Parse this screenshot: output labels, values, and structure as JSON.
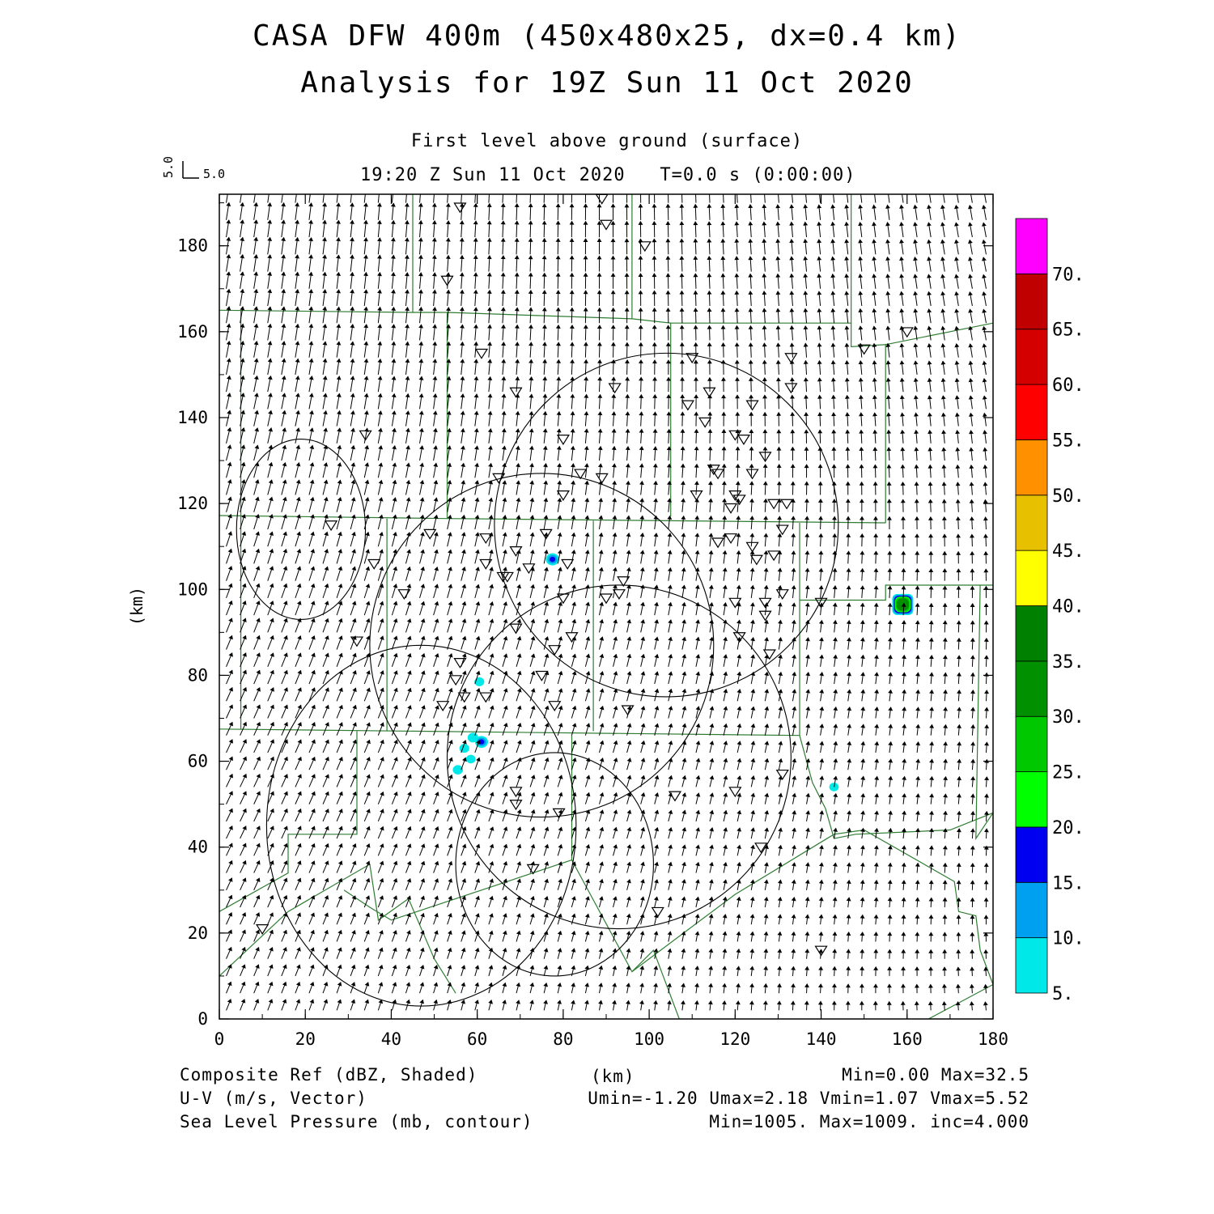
{
  "title_line1": "CASA DFW 400m (450x480x25, dx=0.4 km)",
  "title_line2": "Analysis for 19Z Sun 11 Oct 2020",
  "subtitle": "First level above ground (surface)",
  "time_line": "19:20 Z Sun 11 Oct 2020   T=0.0 s (0:00:00)",
  "vector_key": {
    "x_label": "5.0",
    "y_label": "5.0"
  },
  "footer": {
    "row1_left": "Composite Ref (dBZ, Shaded)",
    "row1_mid": "(km)",
    "row1_right": "Min=0.00 Max=32.5",
    "row2_left": "U-V (m/s, Vector)",
    "row2_right": "Umin=-1.20 Umax=2.18 Vmin=1.07 Vmax=5.52",
    "row3_left": "Sea Level Pressure (mb, contour)",
    "row3_right": "Min=1005. Max=1009. inc=4.000"
  },
  "chart_data": {
    "type": "heatmap",
    "xlabel": "",
    "ylabel": "(km)",
    "xlim": [
      0,
      180
    ],
    "ylim": [
      0,
      192
    ],
    "x_ticks": [
      "0",
      "20",
      "40",
      "60",
      "80",
      "100",
      "120",
      "140",
      "160",
      "180"
    ],
    "y_ticks": [
      "0",
      "20",
      "40",
      "60",
      "80",
      "100",
      "120",
      "140",
      "160",
      "180"
    ],
    "colorbar": {
      "levels": [
        "5.",
        "10.",
        "15.",
        "20.",
        "25.",
        "30.",
        "35.",
        "40.",
        "45.",
        "50.",
        "55.",
        "60.",
        "65.",
        "70."
      ],
      "colors": [
        "#00e8e8",
        "#00a0f0",
        "#0000f0",
        "#00ff00",
        "#00c800",
        "#009000",
        "#008000",
        "#ffff00",
        "#e7c000",
        "#ff9000",
        "#ff0000",
        "#d40000",
        "#c00000",
        "#ff00ff"
      ]
    },
    "reflectivity_cells": [
      {
        "x": 77.5,
        "y": 107,
        "dbz": 16
      },
      {
        "x": 60.5,
        "y": 78.5,
        "dbz": 7
      },
      {
        "x": 59,
        "y": 65.5,
        "dbz": 9
      },
      {
        "x": 61,
        "y": 64.5,
        "dbz": 15
      },
      {
        "x": 57,
        "y": 63,
        "dbz": 7
      },
      {
        "x": 55.5,
        "y": 58,
        "dbz": 8
      },
      {
        "x": 58.5,
        "y": 60.5,
        "dbz": 6
      },
      {
        "x": 143,
        "y": 54,
        "dbz": 6
      },
      {
        "x": 159,
        "y": 96.5,
        "dbz": 32.5
      }
    ],
    "slp_contours_circles": [
      {
        "cx": 19,
        "cy": 114,
        "rx": 15,
        "ry": 21
      },
      {
        "cx": 104,
        "cy": 115,
        "rx": 40,
        "ry": 40
      },
      {
        "cx": 75,
        "cy": 87,
        "rx": 40,
        "ry": 40
      },
      {
        "cx": 47,
        "cy": 45,
        "rx": 36,
        "ry": 42
      },
      {
        "cx": 93,
        "cy": 61,
        "rx": 40,
        "ry": 40
      },
      {
        "cx": 78,
        "cy": 36,
        "rx": 23,
        "ry": 26
      }
    ],
    "wind_field": {
      "u_min": -1.2,
      "u_max": 2.18,
      "v_min": 1.07,
      "v_max": 5.52
    },
    "radar_sites": [
      [
        56,
        189
      ],
      [
        89,
        191
      ],
      [
        90,
        185
      ],
      [
        99,
        180
      ],
      [
        53,
        172
      ],
      [
        61,
        155
      ],
      [
        160,
        160
      ],
      [
        150,
        156
      ],
      [
        110,
        154
      ],
      [
        133,
        154
      ],
      [
        69,
        146
      ],
      [
        92,
        147
      ],
      [
        133,
        147
      ],
      [
        114,
        146
      ],
      [
        109,
        143
      ],
      [
        124,
        143
      ],
      [
        34,
        136
      ],
      [
        80,
        135
      ],
      [
        113,
        139
      ],
      [
        120,
        136
      ],
      [
        122,
        135
      ],
      [
        127,
        131
      ],
      [
        65,
        126
      ],
      [
        84,
        127
      ],
      [
        89,
        126
      ],
      [
        115,
        128
      ],
      [
        116,
        127
      ],
      [
        124,
        127
      ],
      [
        80,
        122
      ],
      [
        111,
        122
      ],
      [
        120,
        122
      ],
      [
        121,
        121
      ],
      [
        119,
        119
      ],
      [
        129,
        120
      ],
      [
        132,
        120
      ],
      [
        26,
        115
      ],
      [
        131,
        114
      ],
      [
        49,
        113
      ],
      [
        76,
        113
      ],
      [
        62,
        112
      ],
      [
        116,
        111
      ],
      [
        119,
        112
      ],
      [
        124,
        110
      ],
      [
        69,
        109
      ],
      [
        125,
        107
      ],
      [
        129,
        108
      ],
      [
        62,
        106
      ],
      [
        36,
        106
      ],
      [
        81,
        106
      ],
      [
        72,
        105
      ],
      [
        66,
        103
      ],
      [
        67,
        103
      ],
      [
        94,
        102
      ],
      [
        43,
        99
      ],
      [
        80,
        98
      ],
      [
        90,
        98
      ],
      [
        93,
        99
      ],
      [
        131,
        99
      ],
      [
        120,
        97
      ],
      [
        127,
        97
      ],
      [
        140,
        97
      ],
      [
        127,
        94
      ],
      [
        69,
        91
      ],
      [
        82,
        89
      ],
      [
        121,
        89
      ],
      [
        32,
        88
      ],
      [
        78,
        86
      ],
      [
        128,
        85
      ],
      [
        56,
        83
      ],
      [
        55,
        79
      ],
      [
        75,
        80
      ],
      [
        57,
        75
      ],
      [
        62,
        75
      ],
      [
        78,
        73
      ],
      [
        95,
        72
      ],
      [
        52,
        73
      ],
      [
        131,
        57
      ],
      [
        69,
        53
      ],
      [
        69,
        50
      ],
      [
        79,
        48
      ],
      [
        106,
        52
      ],
      [
        120,
        53
      ],
      [
        126,
        40
      ],
      [
        73,
        35
      ],
      [
        102,
        25
      ],
      [
        10,
        21
      ],
      [
        140,
        16
      ]
    ]
  }
}
